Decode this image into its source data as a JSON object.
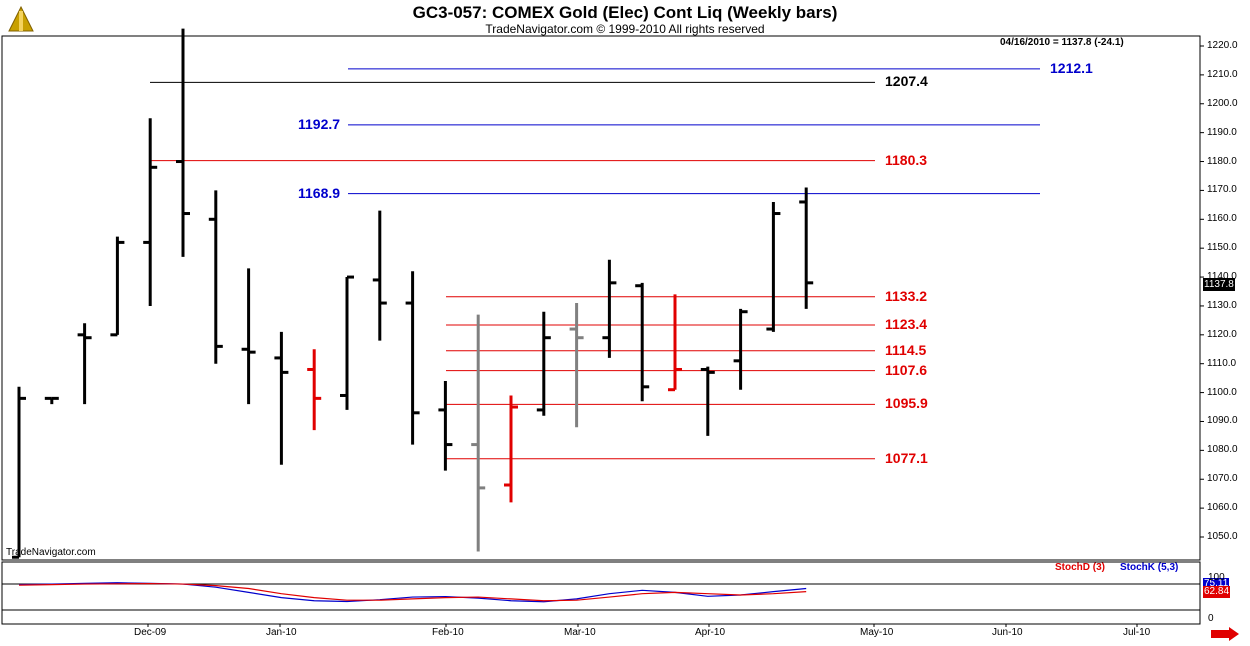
{
  "header": {
    "title": "GC3-057:  COMEX Gold (Elec) Cont Liq  (Weekly bars)",
    "subtitle": "TradeNavigator.com © 1999-2010 All rights reserved"
  },
  "watermark": "TradeNavigator.com",
  "quote": "04/16/2010 = 1137.8 (-24.1)",
  "last_price_tag": "1137.8",
  "stoch": {
    "d_label": "StochD (3)",
    "k_label": "StochK (5,3)",
    "d_value_tag": "62.84",
    "k_value_tag": "75.11",
    "d_color": "#e00000",
    "k_color": "#0000cc",
    "ticks": [
      "100",
      "0"
    ]
  },
  "colors": {
    "up_bar": "#000000",
    "red_bar": "#e00000",
    "grey_bar": "#808080",
    "blue_level": "#0000cc",
    "red_level": "#e00000",
    "black_level": "#000000"
  },
  "chart_data": {
    "type": "bar",
    "title": "GC3-057:  COMEX Gold (Elec) Cont Liq  (Weekly bars)",
    "ylim": [
      1040,
      1225
    ],
    "y_ticks": [
      "1050.0",
      "1060.0",
      "1070.0",
      "1080.0",
      "1090.0",
      "1100.0",
      "1110.0",
      "1120.0",
      "1130.0",
      "1140.0",
      "1150.0",
      "1160.0",
      "1170.0",
      "1180.0",
      "1190.0",
      "1200.0",
      "1210.0",
      "1220.0"
    ],
    "x_ticks": [
      "Dec-09",
      "Jan-10",
      "Feb-10",
      "Mar-10",
      "Apr-10",
      "May-10",
      "Jun-10",
      "Jul-10"
    ],
    "ohlc": [
      {
        "o": 1043,
        "h": 1102,
        "l": 1043,
        "c": 1098,
        "color": "black"
      },
      {
        "o": 1098,
        "h": 1098,
        "l": 1096,
        "c": 1098,
        "color": "black"
      },
      {
        "o": 1120,
        "h": 1124,
        "l": 1096,
        "c": 1119,
        "color": "black"
      },
      {
        "o": 1120,
        "h": 1154,
        "l": 1120,
        "c": 1152,
        "color": "black"
      },
      {
        "o": 1152,
        "h": 1195,
        "l": 1130,
        "c": 1178,
        "color": "black"
      },
      {
        "o": 1180,
        "h": 1226,
        "l": 1147,
        "c": 1162,
        "color": "black"
      },
      {
        "o": 1160,
        "h": 1170,
        "l": 1110,
        "c": 1116,
        "color": "black"
      },
      {
        "o": 1115,
        "h": 1143,
        "l": 1096,
        "c": 1114,
        "color": "black"
      },
      {
        "o": 1112,
        "h": 1121,
        "l": 1075,
        "c": 1107,
        "color": "black"
      },
      {
        "o": 1108,
        "h": 1115,
        "l": 1087,
        "c": 1098,
        "color": "red"
      },
      {
        "o": 1099,
        "h": 1140,
        "l": 1094,
        "c": 1140,
        "color": "black"
      },
      {
        "o": 1139,
        "h": 1163,
        "l": 1118,
        "c": 1131,
        "color": "black"
      },
      {
        "o": 1131,
        "h": 1142,
        "l": 1082,
        "c": 1093,
        "color": "black"
      },
      {
        "o": 1094,
        "h": 1104,
        "l": 1073,
        "c": 1082,
        "color": "black"
      },
      {
        "o": 1082,
        "h": 1127,
        "l": 1045,
        "c": 1067,
        "color": "grey"
      },
      {
        "o": 1068,
        "h": 1099,
        "l": 1062,
        "c": 1095,
        "color": "red"
      },
      {
        "o": 1094,
        "h": 1128,
        "l": 1092,
        "c": 1119,
        "color": "black"
      },
      {
        "o": 1122,
        "h": 1131,
        "l": 1088,
        "c": 1119,
        "color": "grey"
      },
      {
        "o": 1119,
        "h": 1146,
        "l": 1112,
        "c": 1138,
        "color": "black"
      },
      {
        "o": 1137,
        "h": 1138,
        "l": 1097,
        "c": 1102,
        "color": "black"
      },
      {
        "o": 1101,
        "h": 1134,
        "l": 1101,
        "c": 1108,
        "color": "red"
      },
      {
        "o": 1108,
        "h": 1109,
        "l": 1085,
        "c": 1107,
        "color": "black"
      },
      {
        "o": 1111,
        "h": 1129,
        "l": 1101,
        "c": 1128,
        "color": "black"
      },
      {
        "o": 1122,
        "h": 1166,
        "l": 1121,
        "c": 1162,
        "color": "black"
      },
      {
        "o": 1166,
        "h": 1171,
        "l": 1129,
        "c": 1138,
        "color": "black"
      }
    ],
    "levels": [
      {
        "value": 1212.1,
        "label": "1212.1",
        "color": "blue",
        "x_start_bar": 10,
        "label_side": "right"
      },
      {
        "value": 1207.4,
        "label": "1207.4",
        "color": "black",
        "x_start_bar": 4,
        "label_side": "right"
      },
      {
        "value": 1192.7,
        "label": "1192.7",
        "color": "blue",
        "x_start_bar": 10,
        "label_side": "left"
      },
      {
        "value": 1180.3,
        "label": "1180.3",
        "color": "red",
        "x_start_bar": 4,
        "label_side": "right"
      },
      {
        "value": 1168.9,
        "label": "1168.9",
        "color": "blue",
        "x_start_bar": 10,
        "label_side": "left"
      },
      {
        "value": 1133.2,
        "label": "1133.2",
        "color": "red",
        "x_start_bar": 13,
        "label_side": "right"
      },
      {
        "value": 1123.4,
        "label": "1123.4",
        "color": "red",
        "x_start_bar": 13,
        "label_side": "right"
      },
      {
        "value": 1114.5,
        "label": "1114.5",
        "color": "red",
        "x_start_bar": 13,
        "label_side": "right"
      },
      {
        "value": 1107.6,
        "label": "1107.6",
        "color": "red",
        "x_start_bar": 13,
        "label_side": "right"
      },
      {
        "value": 1095.9,
        "label": "1095.9",
        "color": "red",
        "x_start_bar": 13,
        "label_side": "right"
      },
      {
        "value": 1077.1,
        "label": "1077.1",
        "color": "red",
        "x_start_bar": 13,
        "label_side": "right"
      }
    ],
    "stoch_k": [
      90,
      92,
      95,
      97,
      95,
      92,
      80,
      60,
      40,
      28,
      25,
      32,
      42,
      44,
      38,
      28,
      24,
      35,
      55,
      68,
      60,
      45,
      50,
      63,
      75
    ],
    "stoch_d": [
      88,
      90,
      92,
      93,
      94,
      92,
      86,
      75,
      55,
      40,
      30,
      30,
      35,
      40,
      42,
      35,
      28,
      30,
      42,
      55,
      60,
      55,
      50,
      55,
      63
    ]
  }
}
